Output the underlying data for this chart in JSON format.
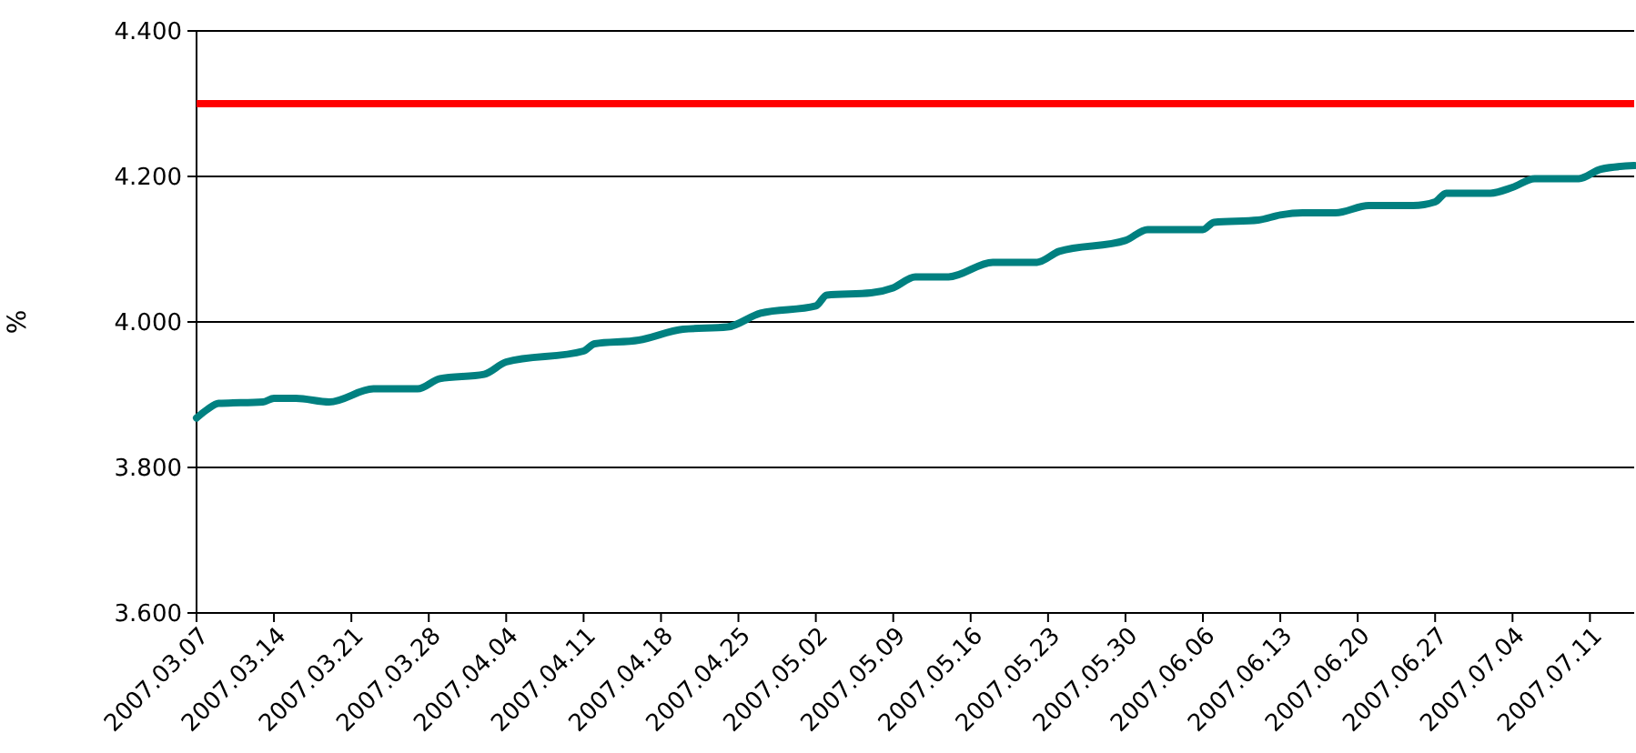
{
  "chart_data": {
    "type": "line",
    "ylabel": "%",
    "x": [
      "2007-03-07",
      "2007-03-08",
      "2007-03-09",
      "2007-03-13",
      "2007-03-14",
      "2007-03-16",
      "2007-03-19",
      "2007-03-23",
      "2007-03-27",
      "2007-03-29",
      "2007-04-02",
      "2007-04-04",
      "2007-04-11",
      "2007-04-12",
      "2007-04-16",
      "2007-04-20",
      "2007-04-24",
      "2007-04-27",
      "2007-05-02",
      "2007-05-03",
      "2007-05-07",
      "2007-05-09",
      "2007-05-11",
      "2007-05-14",
      "2007-05-18",
      "2007-05-22",
      "2007-05-24",
      "2007-05-30",
      "2007-06-01",
      "2007-06-06",
      "2007-06-07",
      "2007-06-11",
      "2007-06-13",
      "2007-06-15",
      "2007-06-18",
      "2007-06-21",
      "2007-06-25",
      "2007-06-27",
      "2007-06-28",
      "2007-07-02",
      "2007-07-04",
      "2007-07-06",
      "2007-07-10",
      "2007-07-12",
      "2007-07-15"
    ],
    "series": [
      {
        "color": "#008080",
        "values": [
          3.868,
          3.88,
          3.888,
          3.89,
          3.895,
          3.895,
          3.89,
          3.908,
          3.908,
          3.922,
          3.928,
          3.945,
          3.96,
          3.97,
          3.975,
          3.99,
          3.993,
          4.012,
          4.022,
          4.037,
          4.04,
          4.047,
          4.062,
          4.062,
          4.082,
          4.082,
          4.097,
          4.112,
          4.127,
          4.127,
          4.137,
          4.14,
          4.147,
          4.15,
          4.15,
          4.16,
          4.16,
          4.165,
          4.177,
          4.177,
          4.185,
          4.197,
          4.197,
          4.21,
          4.215
        ]
      }
    ],
    "xlim": [
      "2007-03-07",
      "2007-07-15"
    ],
    "xticks": [
      {
        "value": "2007-03-07",
        "label": "2007.03.07"
      },
      {
        "value": "2007-03-14",
        "label": "2007.03.14"
      },
      {
        "value": "2007-03-21",
        "label": "2007.03.21"
      },
      {
        "value": "2007-03-28",
        "label": "2007.03.28"
      },
      {
        "value": "2007-04-04",
        "label": "2007.04.04"
      },
      {
        "value": "2007-04-11",
        "label": "2007.04.11"
      },
      {
        "value": "2007-04-18",
        "label": "2007.04.18"
      },
      {
        "value": "2007-04-25",
        "label": "2007.04.25"
      },
      {
        "value": "2007-05-02",
        "label": "2007.05.02"
      },
      {
        "value": "2007-05-09",
        "label": "2007.05.09"
      },
      {
        "value": "2007-05-16",
        "label": "2007.05.16"
      },
      {
        "value": "2007-05-23",
        "label": "2007.05.23"
      },
      {
        "value": "2007-05-30",
        "label": "2007.05.30"
      },
      {
        "value": "2007-06-06",
        "label": "2007.06.06"
      },
      {
        "value": "2007-06-13",
        "label": "2007.06.13"
      },
      {
        "value": "2007-06-20",
        "label": "2007.06.20"
      },
      {
        "value": "2007-06-27",
        "label": "2007.06.27"
      },
      {
        "value": "2007-07-04",
        "label": "2007.07.04"
      },
      {
        "value": "2007-07-11",
        "label": "2007.07.11"
      }
    ],
    "ylim": [
      3.6,
      4.4
    ],
    "yticks": [
      {
        "value": 3.6,
        "label": "3.600"
      },
      {
        "value": 3.8,
        "label": "3.800"
      },
      {
        "value": 4.0,
        "label": "4.000"
      },
      {
        "value": 4.2,
        "label": "4.200"
      },
      {
        "value": 4.4,
        "label": "4.400"
      }
    ],
    "grid": "y",
    "ref_lines": [
      {
        "axis": "y",
        "value": 4.3,
        "color": "#ff0000"
      }
    ]
  }
}
